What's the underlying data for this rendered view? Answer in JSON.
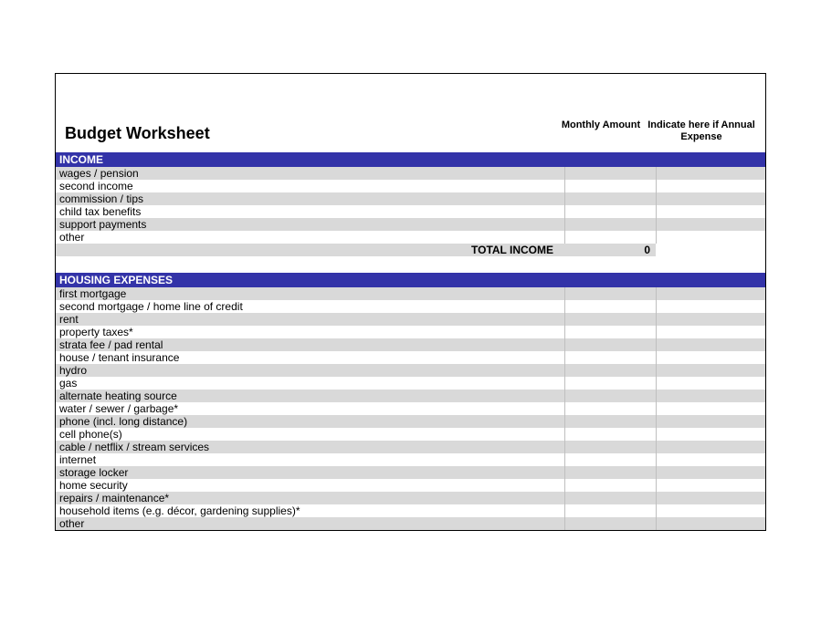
{
  "title": "Budget Worksheet",
  "columns": {
    "monthly": "Monthly Amount",
    "annual": "Indicate here if Annual Expense"
  },
  "sections": [
    {
      "header": "INCOME",
      "rows": [
        {
          "label": "wages / pension"
        },
        {
          "label": "second income"
        },
        {
          "label": "commission / tips"
        },
        {
          "label": "child tax benefits"
        },
        {
          "label": "support payments"
        },
        {
          "label": "other"
        }
      ],
      "total": {
        "label": "TOTAL INCOME",
        "value": "0"
      }
    },
    {
      "header": "HOUSING EXPENSES",
      "rows": [
        {
          "label": "first mortgage"
        },
        {
          "label": "second mortgage / home line of credit"
        },
        {
          "label": "rent"
        },
        {
          "label": "property taxes*"
        },
        {
          "label": "strata fee / pad rental"
        },
        {
          "label": "house / tenant insurance"
        },
        {
          "label": "hydro"
        },
        {
          "label": "gas"
        },
        {
          "label": "alternate heating source"
        },
        {
          "label": "water / sewer / garbage*"
        },
        {
          "label": "phone (incl. long distance)"
        },
        {
          "label": "cell phone(s)"
        },
        {
          "label": "cable / netflix / stream services"
        },
        {
          "label": "internet"
        },
        {
          "label": "storage locker"
        },
        {
          "label": "home security"
        },
        {
          "label": "repairs / maintenance*"
        },
        {
          "label": "household items (e.g. décor, gardening supplies)*"
        },
        {
          "label": "other"
        }
      ]
    }
  ],
  "style": {
    "section_header_bg": "#3333a8",
    "section_header_color": "#ffffff",
    "row_odd_bg": "#d9d9d9",
    "row_even_bg": "#ffffff",
    "border_color": "#000000",
    "cell_divider_color": "#bfbfbf",
    "title_fontsize": 18,
    "body_fontsize": 12,
    "colhead_fontsize": 11
  }
}
